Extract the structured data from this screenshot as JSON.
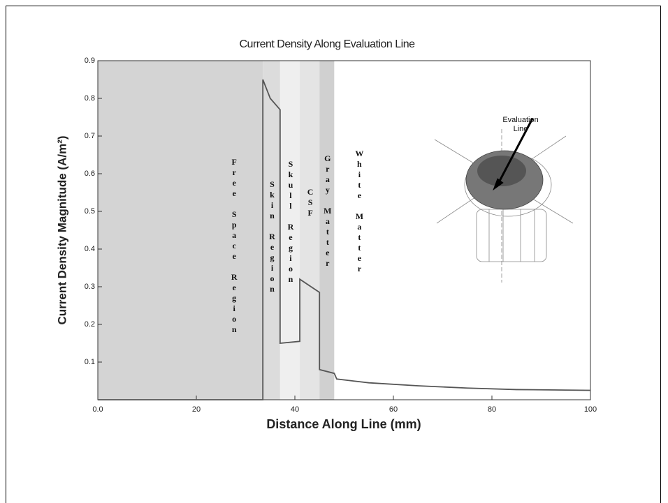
{
  "chart_data": {
    "type": "line",
    "title": "Current Density Along Evaluation Line",
    "x_label": "Distance Along Line (mm)",
    "y_label": "Current Density Magnitude (A/m²)",
    "annotation": "Evaluation Line",
    "x": [
      0,
      33.5,
      33.5,
      35,
      37,
      37,
      41,
      41,
      45,
      45,
      48,
      48.5,
      55,
      65,
      75,
      85,
      100
    ],
    "values": [
      0,
      0,
      0.85,
      0.8,
      0.77,
      0.15,
      0.155,
      0.32,
      0.285,
      0.08,
      0.07,
      0.055,
      0.045,
      0.037,
      0.031,
      0.027,
      0.025
    ],
    "color": "#555555",
    "xlim": [
      0,
      100
    ],
    "ylim": [
      0,
      0.9
    ],
    "xticks": [
      {
        "value": 0,
        "label": "0.0"
      },
      20,
      40,
      60,
      80,
      100
    ],
    "yticks": [
      0.1,
      0.2,
      0.3,
      0.4,
      0.5,
      0.6,
      0.7,
      0.8,
      0.9
    ],
    "regions": [
      {
        "label": "Free Space Region",
        "start": 0,
        "end": 33.5,
        "color": "#d4d4d4"
      },
      {
        "label": "Skin Region",
        "start": 33.5,
        "end": 37,
        "color": "#dcdcdc"
      },
      {
        "label": "Skull Region",
        "start": 37,
        "end": 41,
        "color": "#efefef"
      },
      {
        "label": "CSF",
        "start": 41,
        "end": 45,
        "color": "#e4e4e4"
      },
      {
        "label": "Gray Matter",
        "start": 45,
        "end": 48,
        "color": "#d0d0d0"
      },
      {
        "label": "White Matter",
        "start": 48,
        "end": 100,
        "color": "#ffffff"
      }
    ]
  }
}
